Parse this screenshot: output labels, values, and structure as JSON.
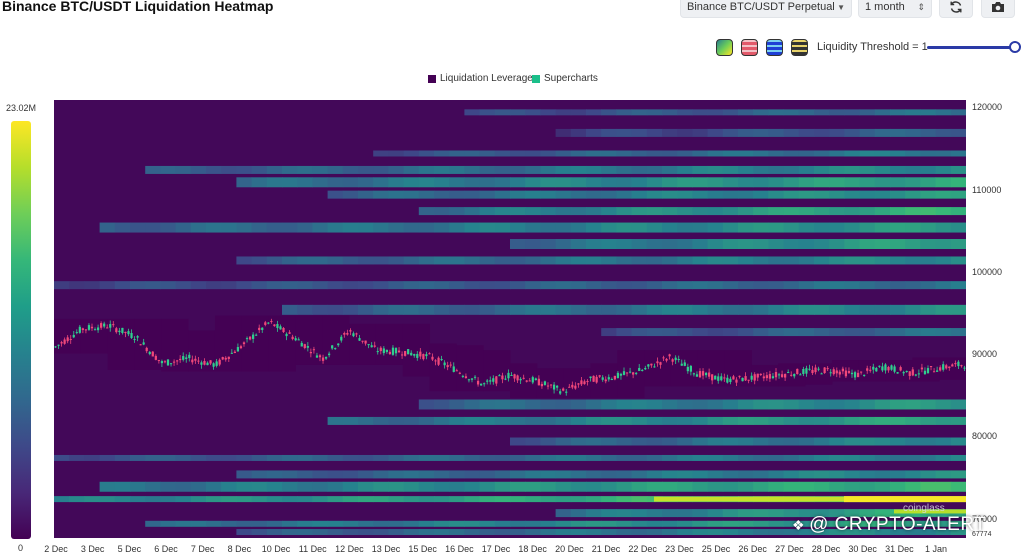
{
  "header": {
    "title": "Binance BTC/USDT Liquidation Heatmap",
    "pair_select": "Binance BTC/USDT Perpetual",
    "period_select": "1 month"
  },
  "toolbar": {
    "refresh_icon": "refresh-icon",
    "camera_icon": "camera-icon",
    "palette_swatches": [
      "palette-viridis",
      "palette-red",
      "palette-blue",
      "palette-dark"
    ],
    "threshold_label": "Liquidity Threshold = 1",
    "threshold_value": 1
  },
  "legend": {
    "items": [
      {
        "label": "Liquidation Leverage",
        "color": "#440154"
      },
      {
        "label": "Supercharts",
        "color": "#1bbf8a"
      }
    ]
  },
  "colorbar": {
    "max_label": "23.02M",
    "min_label": "0"
  },
  "watermarks": {
    "coinglass": "coinglass",
    "channel": "@ CRYPTO-ALERT"
  },
  "chart_data": {
    "type": "heatmap",
    "title": "Binance BTC/USDT Liquidation Heatmap",
    "x_ticks": [
      "2 Dec",
      "3 Dec",
      "5 Dec",
      "6 Dec",
      "7 Dec",
      "8 Dec",
      "10 Dec",
      "11 Dec",
      "12 Dec",
      "13 Dec",
      "15 Dec",
      "16 Dec",
      "17 Dec",
      "18 Dec",
      "20 Dec",
      "21 Dec",
      "22 Dec",
      "23 Dec",
      "25 Dec",
      "26 Dec",
      "27 Dec",
      "28 Dec",
      "30 Dec",
      "31 Dec",
      "1 Jan"
    ],
    "y_ticks": [
      "120000",
      "110000",
      "100000",
      "90000",
      "80000",
      "70000"
    ],
    "y_bottom_label": "67774",
    "ylim": [
      67774,
      121000
    ],
    "color_scale": [
      "#440154",
      "#3e4989",
      "#26828e",
      "#35b779",
      "#b5de2b",
      "#fde725"
    ],
    "colorbar_range": [
      0,
      23020000
    ],
    "price_series": [
      91000,
      93200,
      93600,
      92200,
      89000,
      89600,
      88800,
      91200,
      94000,
      92000,
      89600,
      93000,
      90600,
      90400,
      89800,
      88200,
      86400,
      87600,
      86800,
      85600,
      87000,
      87400,
      88200,
      89800,
      87800,
      87000,
      87200,
      87600,
      88000,
      88200,
      87600,
      88600,
      87800,
      88400,
      88900
    ]
  }
}
